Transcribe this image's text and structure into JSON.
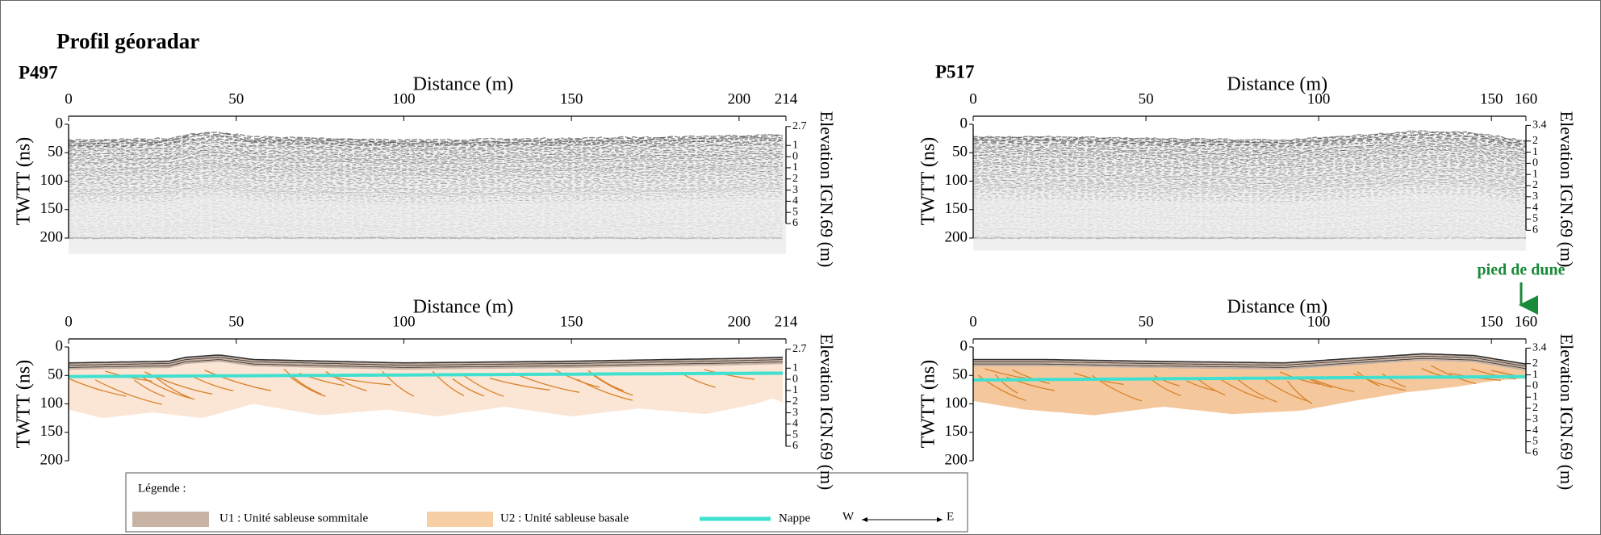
{
  "title": "Profil géoradar",
  "profiles": [
    {
      "name": "P497",
      "radargram": {
        "distance_label": "Distance (m)",
        "xlim": [
          0,
          214
        ],
        "xticks": [
          0,
          50,
          100,
          150,
          200,
          214
        ],
        "twtt_label": "TWTT (ns)",
        "ylim": [
          0,
          200
        ],
        "yticks": [
          0,
          50,
          100,
          150,
          200
        ],
        "elevation_label": "Elevation IGN.69 (m)",
        "elevation_lim": [
          2.9,
          -7.3
        ],
        "elevation_ticks": [
          2.7,
          1,
          0,
          {
            "value": -1,
            "label": "1"
          },
          {
            "value": -2,
            "label": "2"
          },
          {
            "value": -3,
            "label": "3"
          },
          {
            "value": -4,
            "label": "4"
          },
          {
            "value": -5,
            "label": "5"
          },
          {
            "value": -6,
            "label": "6"
          }
        ]
      },
      "interpretation": {
        "distance_label": "Distance (m)",
        "xlim": [
          0,
          214
        ],
        "xticks": [
          0,
          50,
          100,
          150,
          200,
          214
        ],
        "twtt_label": "TWTT (ns)",
        "ylim": [
          0,
          200
        ],
        "yticks": [
          0,
          50,
          100,
          150,
          200
        ],
        "elevation_label": "Elevation IGN.69 (m)",
        "elevation_lim": [
          2.9,
          -7.3
        ],
        "elevation_ticks": [
          2.7,
          1,
          0,
          {
            "value": -1,
            "label": "1"
          },
          {
            "value": -2,
            "label": "2"
          },
          {
            "value": -3,
            "label": "3"
          },
          {
            "value": -4,
            "label": "4"
          },
          {
            "value": -5,
            "label": "5"
          },
          {
            "value": -6,
            "label": "6"
          }
        ]
      }
    },
    {
      "name": "P517",
      "radargram": {
        "distance_label": "Distance (m)",
        "xlim": [
          0,
          160
        ],
        "xticks": [
          0,
          50,
          100,
          150,
          160
        ],
        "twtt_label": "TWTT (ns)",
        "ylim": [
          0,
          200
        ],
        "yticks": [
          0,
          50,
          100,
          150,
          200
        ],
        "elevation_label": "Elevation IGN.69 (m)",
        "elevation_lim": [
          3.5,
          -6.7
        ],
        "elevation_ticks": [
          3.4,
          2,
          1,
          0,
          {
            "value": -1,
            "label": "1"
          },
          {
            "value": -2,
            "label": "2"
          },
          {
            "value": -3,
            "label": "3"
          },
          {
            "value": -4,
            "label": "4"
          },
          {
            "value": -5,
            "label": "5"
          },
          {
            "value": -6,
            "label": "6"
          }
        ]
      },
      "interpretation": {
        "distance_label": "Distance (m)",
        "xlim": [
          0,
          160
        ],
        "xticks": [
          0,
          50,
          100,
          150,
          160
        ],
        "twtt_label": "TWTT (ns)",
        "ylim": [
          0,
          200
        ],
        "yticks": [
          0,
          50,
          100,
          150,
          200
        ],
        "elevation_label": "Elevation IGN.69 (m)",
        "elevation_lim": [
          3.5,
          -6.7
        ],
        "elevation_ticks": [
          3.4,
          2,
          1,
          0,
          {
            "value": -1,
            "label": "1"
          },
          {
            "value": -2,
            "label": "2"
          },
          {
            "value": -3,
            "label": "3"
          },
          {
            "value": -4,
            "label": "4"
          },
          {
            "value": -5,
            "label": "5"
          },
          {
            "value": -6,
            "label": "6"
          }
        ],
        "annotation": "pied de dune"
      }
    }
  ],
  "legend": {
    "title": "Légende :",
    "items": [
      "U1 : Unité sableuse sommitale",
      "U2 : Unité sableuse basale",
      "Nappe"
    ],
    "west": "W",
    "east": "E"
  }
}
